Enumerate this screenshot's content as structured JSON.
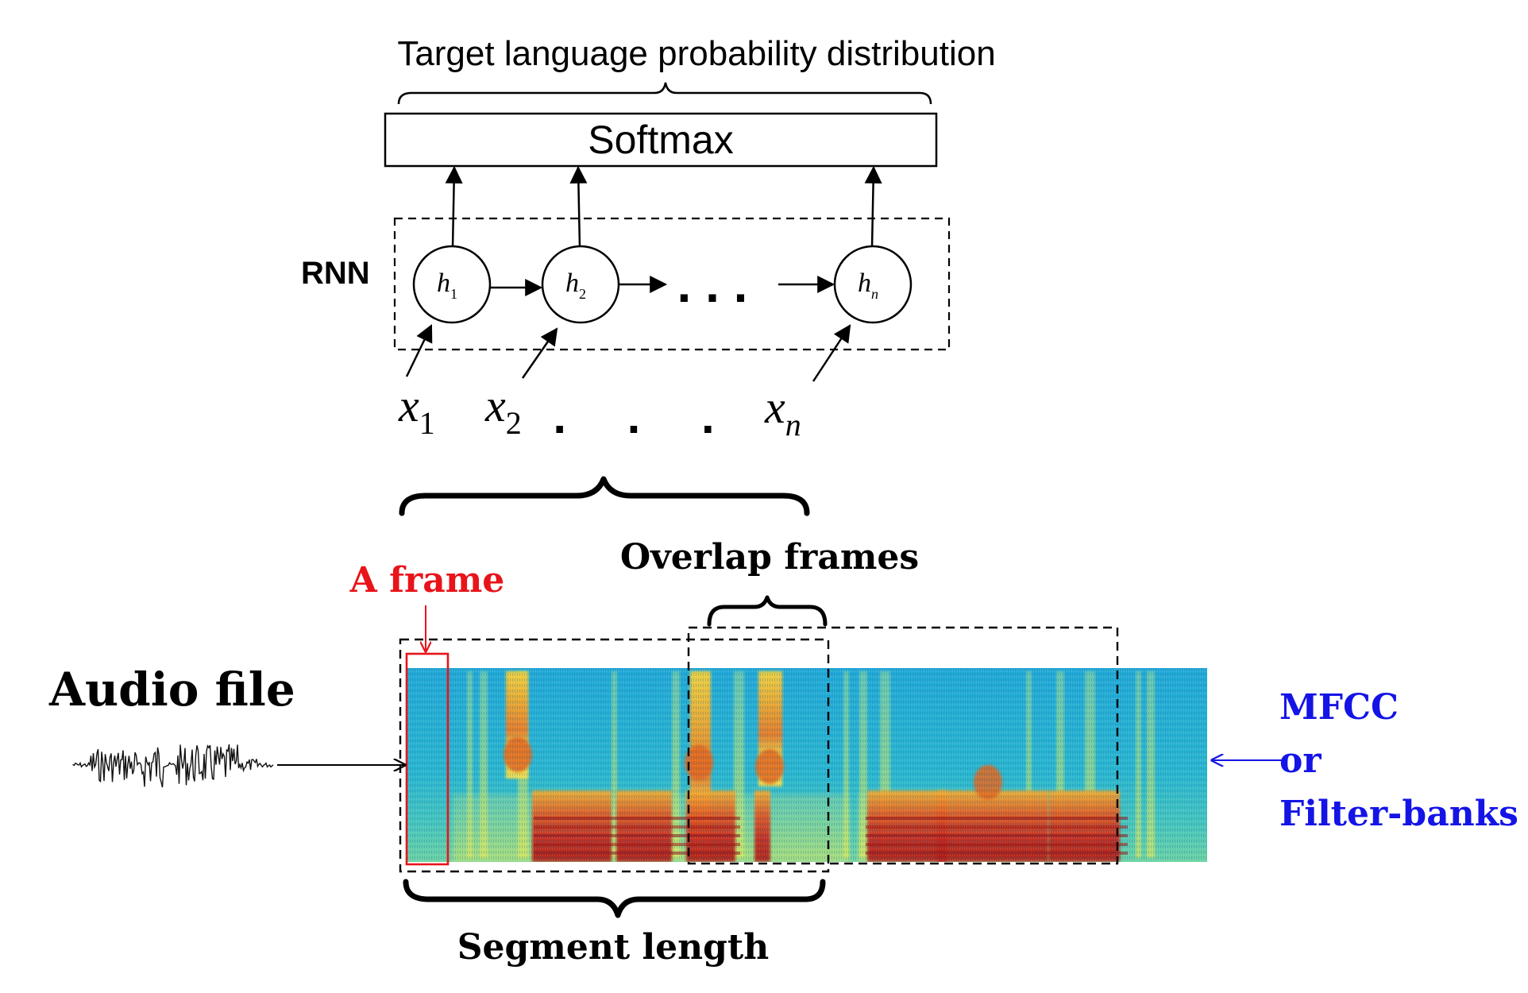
{
  "top_title": "Target language probability distribution",
  "softmax_label": "Softmax",
  "rnn_label": "RNN",
  "hidden_states": [
    {
      "base": "h",
      "sub": "1"
    },
    {
      "base": "h",
      "sub": "2"
    },
    {
      "base": "h",
      "sub": "n"
    }
  ],
  "hidden_ellipsis": ". . .",
  "inputs": [
    {
      "base": "x",
      "sub": "1"
    },
    {
      "base": "x",
      "sub": "2"
    },
    {
      "base": "x",
      "sub": "n"
    }
  ],
  "input_ellipsis": ".  .  .",
  "overlap_label": "Overlap frames",
  "frame_label": "A frame",
  "audio_label": "Audio file",
  "feature_label_lines": [
    "MFCC",
    "or",
    "Filter-banks"
  ],
  "segment_label": "Segment length",
  "colors": {
    "line": "#000000",
    "frame_highlight": "#e8141a",
    "feature_label": "#1414e6",
    "spectrogram_background": "#22a9d6"
  }
}
